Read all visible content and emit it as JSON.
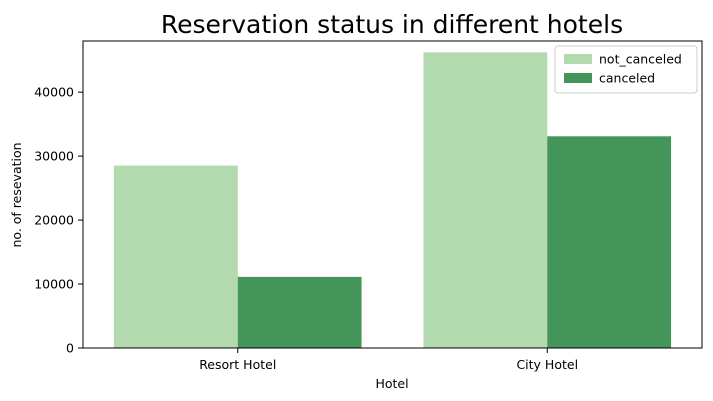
{
  "chart_data": {
    "type": "bar",
    "title": "Reservation status in different hotels",
    "xlabel": "Hotel",
    "ylabel": "no. of resevation",
    "categories": [
      "Resort Hotel",
      "City Hotel"
    ],
    "series": [
      {
        "name": "not_canceled",
        "values": [
          28520,
          46230
        ],
        "color": "#b3d9ae"
      },
      {
        "name": "canceled",
        "values": [
          11120,
          33100
        ],
        "color": "#449559"
      }
    ],
    "ylim": [
      0,
      48000
    ],
    "yticks": [
      0,
      10000,
      20000,
      30000,
      40000
    ],
    "grid": false,
    "legend_position": "top-right"
  }
}
